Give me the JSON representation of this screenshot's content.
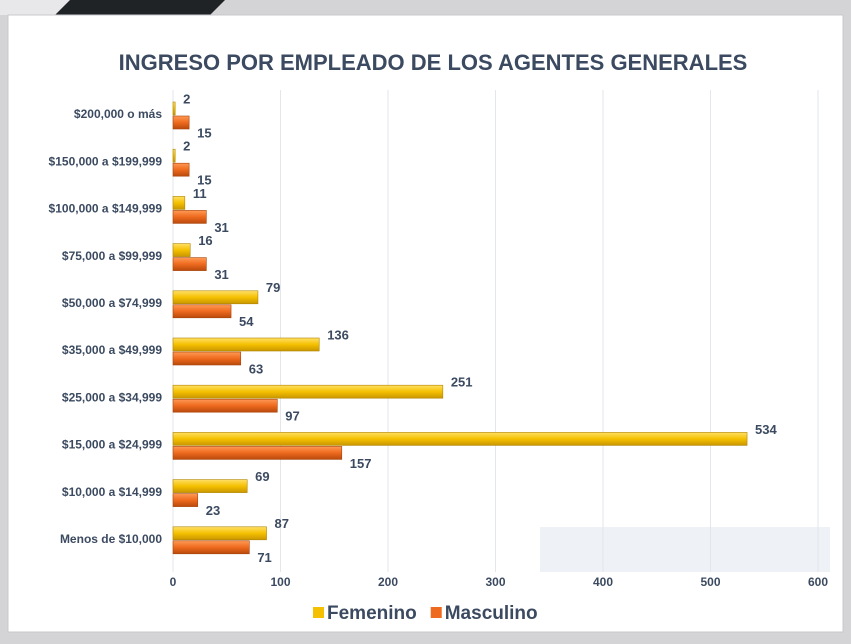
{
  "chart_data": {
    "type": "bar",
    "orientation": "horizontal",
    "title": "INGRESO POR EMPLEADO DE LOS AGENTES GENERALES",
    "categories": [
      "$200,000 o más",
      "$150,000 a $199,999",
      "$100,000 a $149,999",
      "$75,000 a $99,999",
      "$50,000 a $74,999",
      "$35,000 a $49,999",
      "$25,000 a $34,999",
      "$15,000 a $24,999",
      "$10,000 a $14,999",
      "Menos de $10,000"
    ],
    "series": [
      {
        "name": "Femenino",
        "color": "#f5c000",
        "values": [
          2,
          2,
          11,
          16,
          79,
          136,
          251,
          534,
          69,
          87
        ]
      },
      {
        "name": "Masculino",
        "color": "#ee6a1e",
        "values": [
          15,
          15,
          31,
          31,
          54,
          63,
          97,
          157,
          23,
          71
        ]
      }
    ],
    "xlim": [
      0,
      600
    ],
    "xticks": [
      0,
      100,
      200,
      300,
      400,
      500,
      600
    ],
    "grid": true,
    "legend": "bottom"
  }
}
